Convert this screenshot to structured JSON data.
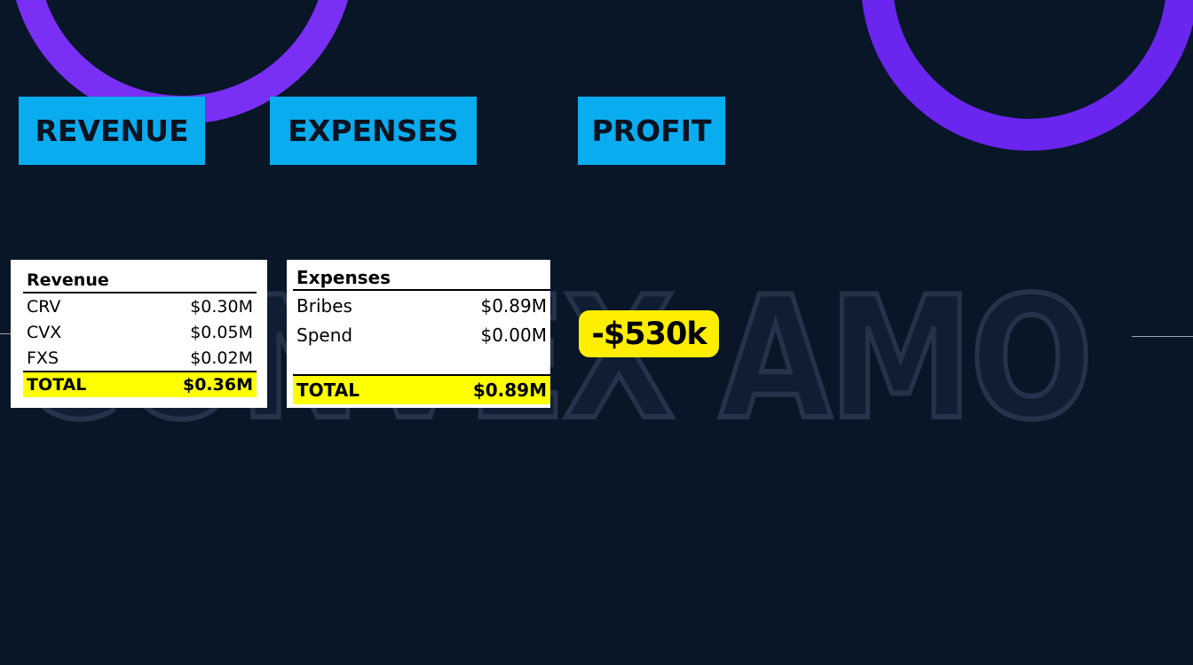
{
  "headers": {
    "revenue": "REVENUE",
    "expenses": "EXPENSES",
    "profit": "PROFIT"
  },
  "revenue_table": {
    "title": "Revenue",
    "rows": [
      {
        "label": "CRV",
        "value": "$0.30M"
      },
      {
        "label": "CVX",
        "value": "$0.05M"
      },
      {
        "label": "FXS",
        "value": "$0.02M"
      }
    ],
    "total": {
      "label": "TOTAL",
      "value": "$0.36M"
    }
  },
  "expenses_table": {
    "title": "Expenses",
    "rows": [
      {
        "label": "Bribes",
        "value": "$0.89M"
      },
      {
        "label": "Spend",
        "value": "$0.00M"
      }
    ],
    "total": {
      "label": "TOTAL",
      "value": "$0.89M"
    }
  },
  "profit_value": "-$530k",
  "watermark": "CONVEX AMO",
  "colors": {
    "background": "#081628",
    "header_bg": "#08acef",
    "highlight": "#ffff00",
    "accent_arc": "#7a2ff5"
  }
}
